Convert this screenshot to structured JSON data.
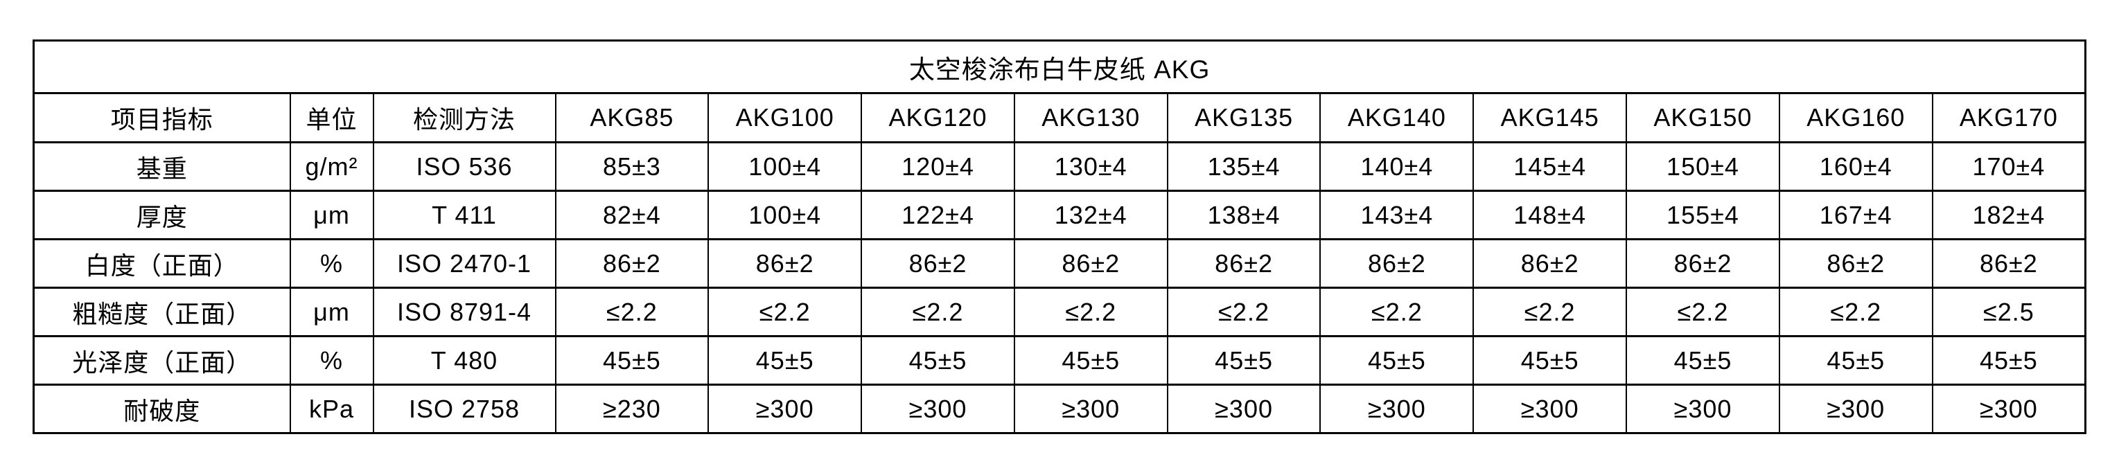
{
  "page": {
    "background": "#ffffff"
  },
  "colors": {
    "border": "#000000",
    "text": "#000000",
    "background": "#ffffff"
  },
  "table": {
    "title": "太空梭涂布白牛皮纸 AKG",
    "columns": [
      "项目指标",
      "单位",
      "检测方法",
      "AKG85",
      "AKG100",
      "AKG120",
      "AKG130",
      "AKG135",
      "AKG140",
      "AKG145",
      "AKG150",
      "AKG160",
      "AKG170"
    ],
    "rows": [
      {
        "indicator": "基重",
        "unit": "g/m²",
        "method": "ISO 536",
        "values": [
          "85±3",
          "100±4",
          "120±4",
          "130±4",
          "135±4",
          "140±4",
          "145±4",
          "150±4",
          "160±4",
          "170±4"
        ]
      },
      {
        "indicator": "厚度",
        "unit": "μm",
        "method": "T 411",
        "values": [
          "82±4",
          "100±4",
          "122±4",
          "132±4",
          "138±4",
          "143±4",
          "148±4",
          "155±4",
          "167±4",
          "182±4"
        ]
      },
      {
        "indicator": "白度（正面）",
        "unit": "%",
        "method": "ISO 2470-1",
        "values": [
          "86±2",
          "86±2",
          "86±2",
          "86±2",
          "86±2",
          "86±2",
          "86±2",
          "86±2",
          "86±2",
          "86±2"
        ]
      },
      {
        "indicator": "粗糙度（正面）",
        "unit": "μm",
        "method": "ISO 8791-4",
        "values": [
          "≤2.2",
          "≤2.2",
          "≤2.2",
          "≤2.2",
          "≤2.2",
          "≤2.2",
          "≤2.2",
          "≤2.2",
          "≤2.2",
          "≤2.5"
        ]
      },
      {
        "indicator": "光泽度（正面）",
        "unit": "%",
        "method": "T 480",
        "values": [
          "45±5",
          "45±5",
          "45±5",
          "45±5",
          "45±5",
          "45±5",
          "45±5",
          "45±5",
          "45±5",
          "45±5"
        ]
      },
      {
        "indicator": "耐破度",
        "unit": "kPa",
        "method": "ISO 2758",
        "values": [
          "≥230",
          "≥300",
          "≥300",
          "≥300",
          "≥300",
          "≥300",
          "≥300",
          "≥300",
          "≥300",
          "≥300"
        ]
      }
    ]
  }
}
